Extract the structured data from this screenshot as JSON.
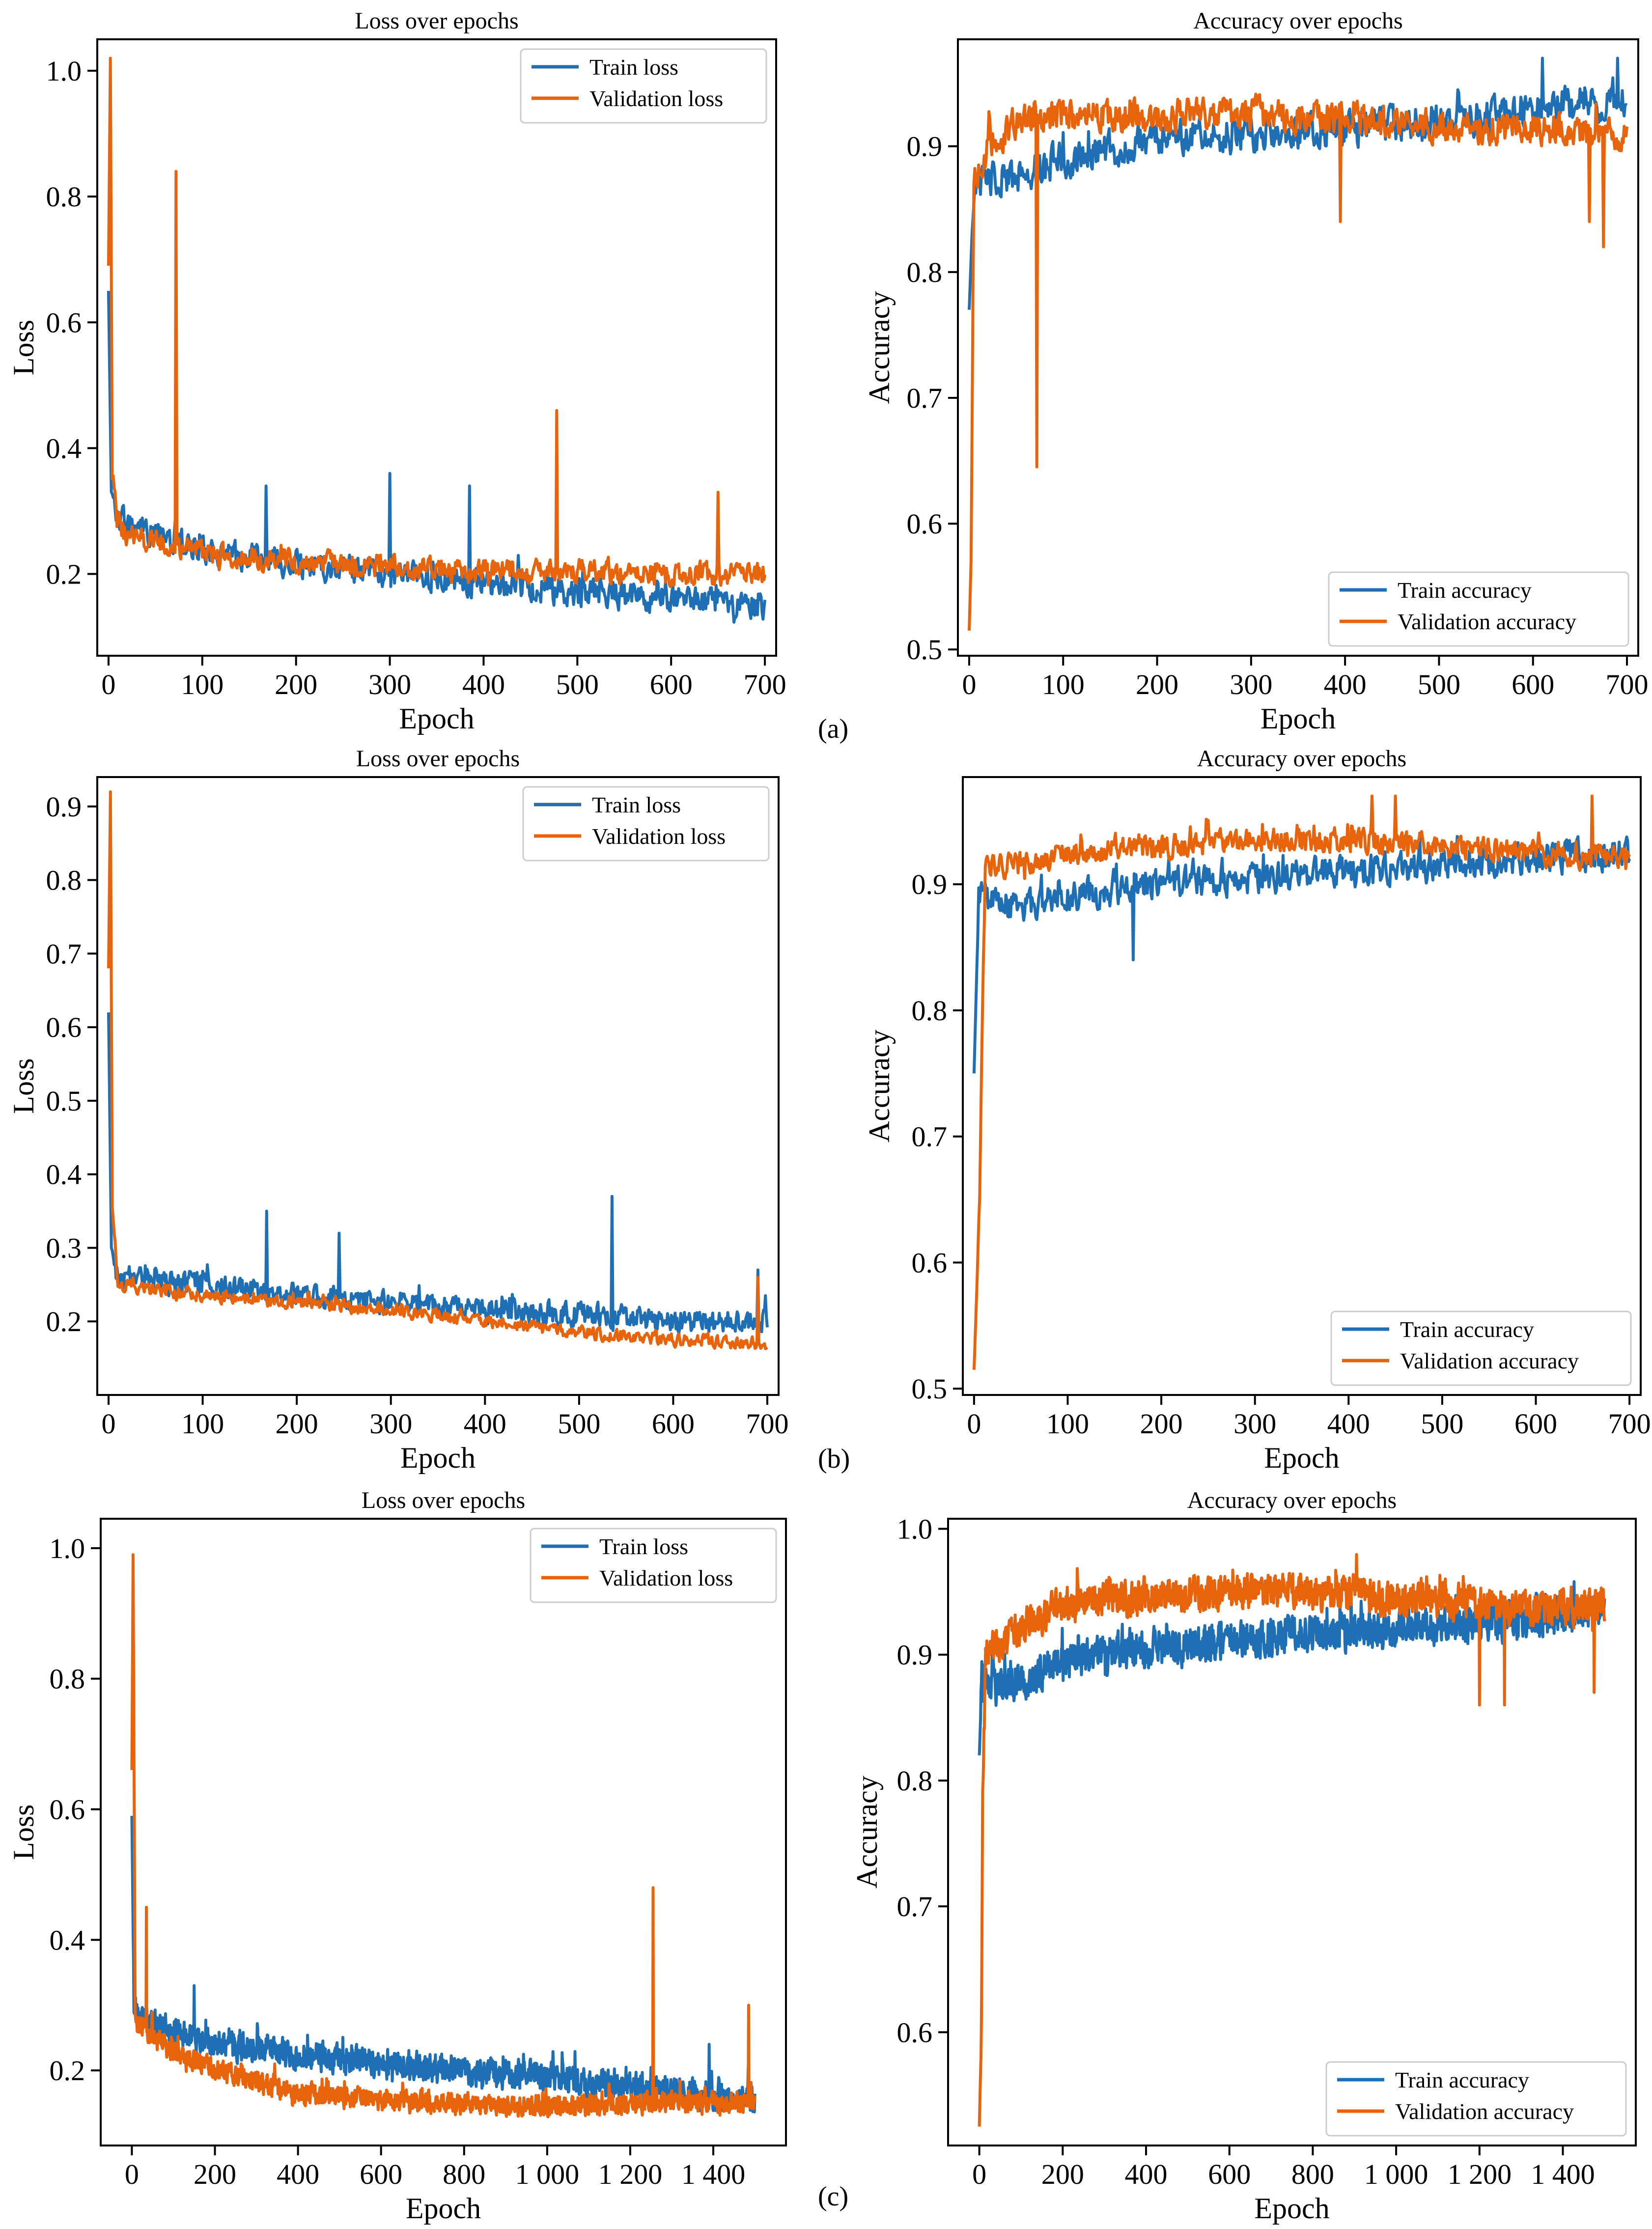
{
  "figure": {
    "panel_labels": [
      "(a)",
      "(b)",
      "(c)"
    ],
    "colors": {
      "train": "#1f6fb4",
      "validation": "#e8640c",
      "frame": "#000000"
    }
  },
  "chart_data": [
    {
      "id": "a-loss",
      "type": "line",
      "title": "Loss over epochs",
      "xlabel": "Epoch",
      "ylabel": "Loss",
      "xlim": [
        -12,
        712
      ],
      "ylim": [
        0.07,
        1.05
      ],
      "xticks": [
        0,
        100,
        200,
        300,
        400,
        500,
        600,
        700
      ],
      "xtick_labels": [
        "0",
        "100",
        "200",
        "300",
        "400",
        "500",
        "600",
        "700"
      ],
      "yticks": [
        0.2,
        0.4,
        0.6,
        0.8,
        1.0
      ],
      "ytick_labels": [
        "0.2",
        "0.4",
        "0.6",
        "0.8",
        "1.0"
      ],
      "legend_position": "top-right",
      "grid": false,
      "length": 700,
      "series": [
        {
          "name": "Train loss",
          "color": "#1f6fb4",
          "points": [
            [
              0,
              0.65
            ],
            [
              3,
              0.33
            ],
            [
              8,
              0.29
            ],
            [
              50,
              0.26
            ],
            [
              100,
              0.24
            ],
            [
              200,
              0.215
            ],
            [
              300,
              0.2
            ],
            [
              400,
              0.185
            ],
            [
              500,
              0.17
            ],
            [
              600,
              0.16
            ],
            [
              700,
              0.15
            ]
          ],
          "noise": 0.03,
          "spikes": [
            [
              168,
              0.34
            ],
            [
              300,
              0.36
            ],
            [
              385,
              0.34
            ]
          ]
        },
        {
          "name": "Validation loss",
          "color": "#e8640c",
          "points": [
            [
              0,
              0.69
            ],
            [
              2,
              1.02
            ],
            [
              4,
              0.36
            ],
            [
              10,
              0.27
            ],
            [
              50,
              0.25
            ],
            [
              100,
              0.235
            ],
            [
              200,
              0.22
            ],
            [
              300,
              0.21
            ],
            [
              400,
              0.205
            ],
            [
              500,
              0.205
            ],
            [
              600,
              0.2
            ],
            [
              700,
              0.2
            ]
          ],
          "noise": 0.025,
          "spikes": [
            [
              72,
              0.84
            ],
            [
              478,
              0.46
            ],
            [
              650,
              0.33
            ]
          ]
        }
      ]
    },
    {
      "id": "a-acc",
      "type": "line",
      "title": "Accuracy over epochs",
      "xlabel": "Epoch",
      "ylabel": "Accuracy",
      "xlim": [
        -12,
        712
      ],
      "ylim": [
        0.495,
        0.985
      ],
      "xticks": [
        0,
        100,
        200,
        300,
        400,
        500,
        600,
        700
      ],
      "xtick_labels": [
        "0",
        "100",
        "200",
        "300",
        "400",
        "500",
        "600",
        "700"
      ],
      "yticks": [
        0.5,
        0.6,
        0.7,
        0.8,
        0.9
      ],
      "ytick_labels": [
        "0.5",
        "0.6",
        "0.7",
        "0.8",
        "0.9"
      ],
      "legend_position": "bottom-right",
      "grid": false,
      "length": 700,
      "series": [
        {
          "name": "Train accuracy",
          "color": "#1f6fb4",
          "points": [
            [
              0,
              0.77
            ],
            [
              5,
              0.87
            ],
            [
              50,
              0.875
            ],
            [
              100,
              0.89
            ],
            [
              200,
              0.905
            ],
            [
              300,
              0.91
            ],
            [
              400,
              0.915
            ],
            [
              500,
              0.92
            ],
            [
              600,
              0.93
            ],
            [
              700,
              0.94
            ]
          ],
          "noise": 0.02,
          "spikes": [
            [
              610,
              0.97
            ],
            [
              690,
              0.97
            ]
          ]
        },
        {
          "name": "Validation accuracy",
          "color": "#e8640c",
          "points": [
            [
              0,
              0.515
            ],
            [
              2,
              0.57
            ],
            [
              5,
              0.87
            ],
            [
              20,
              0.9
            ],
            [
              50,
              0.92
            ],
            [
              100,
              0.925
            ],
            [
              300,
              0.925
            ],
            [
              500,
              0.915
            ],
            [
              600,
              0.915
            ],
            [
              700,
              0.91
            ]
          ],
          "noise": 0.018,
          "spikes": [
            [
              72,
              0.645
            ],
            [
              395,
              0.84
            ],
            [
              660,
              0.84
            ],
            [
              675,
              0.82
            ]
          ]
        }
      ]
    },
    {
      "id": "b-loss",
      "type": "line",
      "title": "Loss over epochs",
      "xlabel": "Epoch",
      "ylabel": "Loss",
      "xlim": [
        -12,
        712
      ],
      "ylim": [
        0.1,
        0.94
      ],
      "xticks": [
        0,
        100,
        200,
        300,
        400,
        500,
        600,
        700
      ],
      "xtick_labels": [
        "0",
        "100",
        "200",
        "300",
        "400",
        "500",
        "600",
        "700"
      ],
      "yticks": [
        0.2,
        0.3,
        0.4,
        0.5,
        0.6,
        0.7,
        0.8,
        0.9
      ],
      "ytick_labels": [
        "0.2",
        "0.3",
        "0.4",
        "0.5",
        "0.6",
        "0.7",
        "0.8",
        "0.9"
      ],
      "legend_position": "top-right",
      "grid": false,
      "length": 700,
      "series": [
        {
          "name": "Train loss",
          "color": "#1f6fb4",
          "points": [
            [
              0,
              0.62
            ],
            [
              3,
              0.3
            ],
            [
              8,
              0.26
            ],
            [
              100,
              0.25
            ],
            [
              200,
              0.235
            ],
            [
              300,
              0.225
            ],
            [
              400,
              0.215
            ],
            [
              500,
              0.21
            ],
            [
              600,
              0.2
            ],
            [
              700,
              0.2
            ]
          ],
          "noise": 0.022,
          "spikes": [
            [
              168,
              0.35
            ],
            [
              245,
              0.32
            ],
            [
              535,
              0.37
            ],
            [
              690,
              0.27
            ]
          ]
        },
        {
          "name": "Validation loss",
          "color": "#e8640c",
          "points": [
            [
              0,
              0.68
            ],
            [
              2,
              0.92
            ],
            [
              4,
              0.36
            ],
            [
              10,
              0.25
            ],
            [
              100,
              0.235
            ],
            [
              200,
              0.225
            ],
            [
              300,
              0.215
            ],
            [
              400,
              0.2
            ],
            [
              500,
              0.185
            ],
            [
              600,
              0.175
            ],
            [
              700,
              0.17
            ]
          ],
          "noise": 0.012,
          "spikes": [
            [
              690,
              0.26
            ]
          ]
        }
      ]
    },
    {
      "id": "b-acc",
      "type": "line",
      "title": "Accuracy over epochs",
      "xlabel": "Epoch",
      "ylabel": "Accuracy",
      "xlim": [
        -12,
        712
      ],
      "ylim": [
        0.495,
        0.985
      ],
      "xticks": [
        0,
        100,
        200,
        300,
        400,
        500,
        600,
        700
      ],
      "xtick_labels": [
        "0",
        "100",
        "200",
        "300",
        "400",
        "500",
        "600",
        "700"
      ],
      "yticks": [
        0.5,
        0.6,
        0.7,
        0.8,
        0.9
      ],
      "ytick_labels": [
        "0.5",
        "0.6",
        "0.7",
        "0.8",
        "0.9"
      ],
      "legend_position": "bottom-right",
      "grid": false,
      "length": 700,
      "series": [
        {
          "name": "Train accuracy",
          "color": "#1f6fb4",
          "points": [
            [
              0,
              0.75
            ],
            [
              5,
              0.89
            ],
            [
              50,
              0.88
            ],
            [
              100,
              0.89
            ],
            [
              200,
              0.9
            ],
            [
              300,
              0.905
            ],
            [
              400,
              0.91
            ],
            [
              500,
              0.915
            ],
            [
              600,
              0.92
            ],
            [
              700,
              0.925
            ]
          ],
          "noise": 0.017,
          "spikes": [
            [
              170,
              0.84
            ]
          ]
        },
        {
          "name": "Validation accuracy",
          "color": "#e8640c",
          "points": [
            [
              0,
              0.515
            ],
            [
              3,
              0.58
            ],
            [
              6,
              0.65
            ],
            [
              10,
              0.84
            ],
            [
              12,
              0.915
            ],
            [
              50,
              0.915
            ],
            [
              100,
              0.925
            ],
            [
              200,
              0.93
            ],
            [
              300,
              0.935
            ],
            [
              400,
              0.935
            ],
            [
              500,
              0.93
            ],
            [
              600,
              0.925
            ],
            [
              700,
              0.92
            ]
          ],
          "noise": 0.013,
          "spikes": [
            [
              425,
              0.97
            ],
            [
              450,
              0.97
            ],
            [
              660,
              0.97
            ]
          ]
        }
      ]
    },
    {
      "id": "c-loss",
      "type": "line",
      "title": "Loss over epochs",
      "xlabel": "Epoch",
      "ylabel": "Loss",
      "xlim": [
        -75,
        1575
      ],
      "ylim": [
        0.085,
        1.045
      ],
      "xticks": [
        0,
        200,
        400,
        600,
        800,
        1000,
        1200,
        1400
      ],
      "xtick_labels": [
        "0",
        "200",
        "400",
        "600",
        "800",
        "1 000",
        "1 200",
        "1 400"
      ],
      "yticks": [
        0.2,
        0.4,
        0.6,
        0.8,
        1.0
      ],
      "ytick_labels": [
        "0.2",
        "0.4",
        "0.6",
        "0.8",
        "1.0"
      ],
      "legend_position": "top-right",
      "grid": false,
      "length": 1500,
      "series": [
        {
          "name": "Train loss",
          "color": "#1f6fb4",
          "points": [
            [
              0,
              0.59
            ],
            [
              5,
              0.3
            ],
            [
              20,
              0.28
            ],
            [
              100,
              0.26
            ],
            [
              200,
              0.24
            ],
            [
              400,
              0.225
            ],
            [
              600,
              0.21
            ],
            [
              800,
              0.2
            ],
            [
              1000,
              0.19
            ],
            [
              1200,
              0.175
            ],
            [
              1400,
              0.16
            ],
            [
              1500,
              0.155
            ]
          ],
          "noise": 0.03,
          "spikes": [
            [
              150,
              0.33
            ],
            [
              1390,
              0.24
            ]
          ]
        },
        {
          "name": "Validation loss",
          "color": "#e8640c",
          "points": [
            [
              0,
              0.66
            ],
            [
              3,
              0.99
            ],
            [
              8,
              0.27
            ],
            [
              50,
              0.25
            ],
            [
              100,
              0.23
            ],
            [
              200,
              0.2
            ],
            [
              400,
              0.165
            ],
            [
              600,
              0.155
            ],
            [
              800,
              0.15
            ],
            [
              1000,
              0.145
            ],
            [
              1200,
              0.15
            ],
            [
              1400,
              0.15
            ],
            [
              1500,
              0.15
            ]
          ],
          "noise": 0.022,
          "spikes": [
            [
              35,
              0.45
            ],
            [
              1255,
              0.48
            ],
            [
              1485,
              0.3
            ]
          ]
        }
      ]
    },
    {
      "id": "c-acc",
      "type": "line",
      "title": "Accuracy over epochs",
      "xlabel": "Epoch",
      "ylabel": "Accuracy",
      "xlim": [
        -75,
        1575
      ],
      "ylim": [
        0.51,
        1.008
      ],
      "xticks": [
        0,
        200,
        400,
        600,
        800,
        1000,
        1200,
        1400
      ],
      "xtick_labels": [
        "0",
        "200",
        "400",
        "600",
        "800",
        "1 000",
        "1 200",
        "1 400"
      ],
      "yticks": [
        0.6,
        0.7,
        0.8,
        0.9,
        1.0
      ],
      "ytick_labels": [
        "0.6",
        "0.7",
        "0.8",
        "0.9",
        "1.0"
      ],
      "legend_position": "bottom-right",
      "grid": false,
      "length": 1500,
      "series": [
        {
          "name": "Train accuracy",
          "color": "#1f6fb4",
          "points": [
            [
              0,
              0.82
            ],
            [
              5,
              0.87
            ],
            [
              100,
              0.88
            ],
            [
              200,
              0.895
            ],
            [
              400,
              0.905
            ],
            [
              600,
              0.91
            ],
            [
              800,
              0.915
            ],
            [
              1000,
              0.92
            ],
            [
              1200,
              0.925
            ],
            [
              1400,
              0.93
            ],
            [
              1500,
              0.935
            ]
          ],
          "noise": 0.02,
          "spikes": [
            [
              1495,
              0.95
            ]
          ]
        },
        {
          "name": "Validation accuracy",
          "color": "#e8640c",
          "points": [
            [
              0,
              0.525
            ],
            [
              5,
              0.6
            ],
            [
              8,
              0.78
            ],
            [
              15,
              0.9
            ],
            [
              50,
              0.91
            ],
            [
              200,
              0.94
            ],
            [
              400,
              0.945
            ],
            [
              600,
              0.95
            ],
            [
              800,
              0.95
            ],
            [
              1000,
              0.945
            ],
            [
              1200,
              0.94
            ],
            [
              1400,
              0.935
            ],
            [
              1500,
              0.94
            ]
          ],
          "noise": 0.018,
          "spikes": [
            [
              1200,
              0.86
            ],
            [
              1260,
              0.86
            ],
            [
              1475,
              0.87
            ]
          ]
        }
      ]
    }
  ]
}
